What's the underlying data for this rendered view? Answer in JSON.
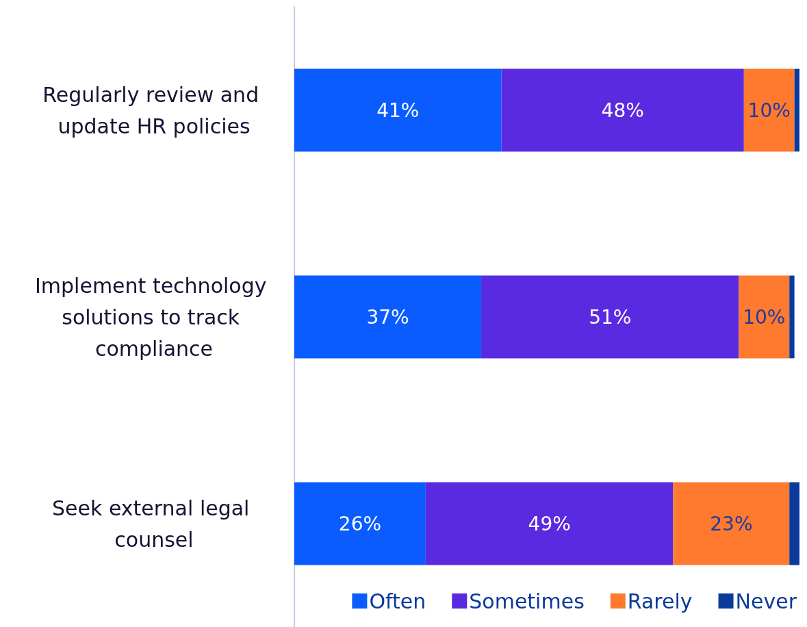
{
  "chart_data": {
    "type": "bar",
    "orientation": "horizontal",
    "stacked": true,
    "categories": [
      "Regularly review and update HR policies",
      "Implement technology solutions to track compliance",
      "Seek external legal counsel"
    ],
    "series": [
      {
        "name": "Often",
        "color": "#0a5cff",
        "values": [
          41,
          37,
          26
        ],
        "value_labels": [
          "41%",
          "37%",
          "26%"
        ]
      },
      {
        "name": "Sometimes",
        "color": "#5a2ae0",
        "values": [
          48,
          51,
          49
        ],
        "value_labels": [
          "48%",
          "51%",
          "49%"
        ]
      },
      {
        "name": "Rarely",
        "color": "#ff7a2f",
        "values": [
          10,
          10,
          23
        ],
        "value_labels": [
          "10%",
          "10%",
          "23%"
        ]
      },
      {
        "name": "Never",
        "color": "#0a3a9c",
        "values": [
          1,
          1,
          2
        ],
        "value_labels": [
          null,
          null,
          null
        ]
      }
    ],
    "xlim": [
      0,
      100
    ],
    "tick_labels": "y",
    "grid": false,
    "legend": "bottom right"
  }
}
